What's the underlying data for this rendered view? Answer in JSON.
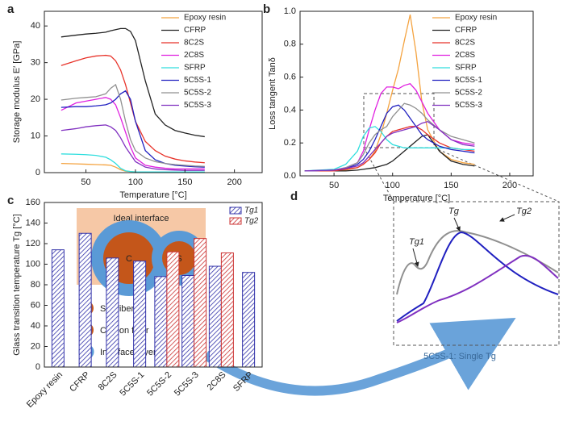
{
  "chart_data": [
    {
      "type": "line",
      "label": "a",
      "xlabel": "Temperature [°C]",
      "ylabel": "Storage modulus E′ [GPa]",
      "xlim": [
        8,
        228
      ],
      "xticks": [
        50,
        100,
        150,
        200
      ],
      "ylim": [
        0,
        44
      ],
      "yticks": [
        0,
        10,
        20,
        30,
        40
      ],
      "legend": "upper right",
      "x": [
        25,
        40,
        50,
        60,
        70,
        75,
        80,
        85,
        90,
        95,
        100,
        110,
        120,
        130,
        140,
        150,
        160,
        170
      ],
      "series": [
        {
          "name": "Epoxy resin",
          "color": "#f4a340",
          "values": [
            2.5,
            2.4,
            2.3,
            2.2,
            2.1,
            2,
            1.5,
            0.8,
            0.4,
            0.3,
            0.2,
            0.2,
            0.2,
            0.2,
            0.2,
            0.2,
            0.2,
            0.2
          ]
        },
        {
          "name": "CFRP",
          "color": "#222222",
          "values": [
            37,
            37.5,
            37.8,
            38,
            38.3,
            38.7,
            39,
            39.3,
            39.3,
            38.5,
            36,
            25,
            16,
            13,
            11.5,
            10.8,
            10.2,
            9.8
          ]
        },
        {
          "name": "8C2S",
          "color": "#e8332a",
          "values": [
            29.2,
            30.5,
            31.3,
            31.8,
            32,
            31.8,
            30.5,
            28,
            24,
            19,
            14,
            8.5,
            6,
            4.5,
            3.7,
            3.2,
            2.9,
            2.7
          ]
        },
        {
          "name": "2C8S",
          "color": "#e020e0",
          "values": [
            17,
            19,
            19.5,
            20,
            20.5,
            20,
            18.5,
            15,
            11,
            7,
            4,
            2,
            1.5,
            1.2,
            1,
            1,
            1,
            1
          ]
        },
        {
          "name": "SFRP",
          "color": "#30dede",
          "values": [
            5.1,
            5,
            4.9,
            4.7,
            4.2,
            3.5,
            2.5,
            1.2,
            0.5,
            0.3,
            0.2,
            0.2,
            0.2,
            0.2,
            0.2,
            0.2,
            0.2,
            0.2
          ]
        },
        {
          "name": "5C5S-1",
          "color": "#2020c0",
          "values": [
            17.8,
            18,
            18,
            18.2,
            18.5,
            19,
            20,
            21.5,
            22.3,
            20,
            14,
            6,
            3.5,
            2.5,
            2,
            1.8,
            1.6,
            1.5
          ]
        },
        {
          "name": "5C5S-2",
          "color": "#909090",
          "values": [
            19.8,
            20.3,
            20.5,
            20.7,
            21.5,
            23,
            24,
            20,
            14,
            9,
            6,
            4,
            3,
            2.5,
            2.2,
            2,
            1.8,
            1.7
          ]
        },
        {
          "name": "5C5S-3",
          "color": "#8030c0",
          "values": [
            11.5,
            12,
            12.5,
            12.8,
            13,
            12.5,
            11.5,
            9.5,
            7,
            5,
            3,
            1.5,
            1,
            0.8,
            0.7,
            0.6,
            0.6,
            0.6
          ]
        }
      ]
    },
    {
      "type": "line",
      "label": "b",
      "xlabel": "Temperature [°C]",
      "ylabel": "Loss tangent Tanδ",
      "xlim": [
        21,
        220
      ],
      "xticks": [
        50,
        100,
        150,
        200
      ],
      "ylim": [
        0,
        1
      ],
      "yticks": [
        {
          "value": 0,
          "label": "0.0"
        },
        0.2,
        0.4,
        0.6,
        0.8,
        {
          "value": 1,
          "label": "1.0"
        }
      ],
      "legend": "upper right",
      "x": [
        25,
        50,
        60,
        70,
        75,
        80,
        85,
        90,
        95,
        100,
        105,
        110,
        115,
        120,
        125,
        130,
        140,
        150,
        160,
        170
      ],
      "series": [
        {
          "name": "Epoxy resin",
          "color": "#f4a340",
          "values": [
            0.03,
            0.03,
            0.035,
            0.05,
            0.07,
            0.1,
            0.15,
            0.25,
            0.38,
            0.52,
            0.65,
            0.82,
            0.98,
            0.75,
            0.45,
            0.28,
            0.15,
            0.1,
            0.08,
            0.07
          ]
        },
        {
          "name": "CFRP",
          "color": "#222222",
          "values": [
            0.03,
            0.03,
            0.03,
            0.035,
            0.04,
            0.045,
            0.05,
            0.06,
            0.07,
            0.09,
            0.12,
            0.15,
            0.18,
            0.21,
            0.24,
            0.25,
            0.15,
            0.09,
            0.07,
            0.06
          ]
        },
        {
          "name": "8C2S",
          "color": "#e8332a",
          "values": [
            0.03,
            0.03,
            0.04,
            0.05,
            0.07,
            0.1,
            0.14,
            0.2,
            0.24,
            0.27,
            0.28,
            0.29,
            0.3,
            0.3,
            0.28,
            0.25,
            0.2,
            0.17,
            0.16,
            0.15
          ]
        },
        {
          "name": "2C8S",
          "color": "#e020e0",
          "values": [
            0.03,
            0.035,
            0.05,
            0.08,
            0.15,
            0.28,
            0.4,
            0.5,
            0.54,
            0.54,
            0.53,
            0.55,
            0.56,
            0.52,
            0.45,
            0.38,
            0.28,
            0.22,
            0.2,
            0.19
          ]
        },
        {
          "name": "SFRP",
          "color": "#30dede",
          "values": [
            0.03,
            0.04,
            0.07,
            0.15,
            0.24,
            0.29,
            0.3,
            0.27,
            0.22,
            0.19,
            0.18,
            0.17,
            0.17,
            0.17,
            0.17,
            0.17,
            0.17,
            0.17,
            0.16,
            0.16
          ]
        },
        {
          "name": "5C5S-1",
          "color": "#2020c0",
          "values": [
            0.03,
            0.035,
            0.045,
            0.07,
            0.1,
            0.15,
            0.22,
            0.3,
            0.38,
            0.42,
            0.43,
            0.4,
            0.35,
            0.3,
            0.25,
            0.22,
            0.18,
            0.16,
            0.15,
            0.14
          ]
        },
        {
          "name": "5C5S-2",
          "color": "#909090",
          "values": [
            0.03,
            0.035,
            0.05,
            0.08,
            0.13,
            0.2,
            0.25,
            0.28,
            0.3,
            0.36,
            0.4,
            0.44,
            0.43,
            0.41,
            0.38,
            0.34,
            0.28,
            0.24,
            0.22,
            0.2
          ]
        },
        {
          "name": "5C5S-3",
          "color": "#8030c0",
          "values": [
            0.03,
            0.035,
            0.045,
            0.06,
            0.08,
            0.12,
            0.16,
            0.2,
            0.24,
            0.26,
            0.27,
            0.28,
            0.29,
            0.3,
            0.32,
            0.33,
            0.28,
            0.22,
            0.19,
            0.18
          ]
        }
      ]
    },
    {
      "type": "bar",
      "label": "c",
      "ylabel": "Glass transition temperature Tg [°C]",
      "ylim": [
        0,
        160
      ],
      "yticks": [
        0,
        20,
        40,
        60,
        80,
        100,
        120,
        140,
        160
      ],
      "legend": "upper right",
      "categories": [
        "Epoxy resin",
        "CFRP",
        "8C2S",
        "5C5S-1",
        "5C5S-2",
        "5C5S-3",
        "2C8S",
        "SFRP"
      ],
      "series": [
        {
          "name": "Tg1",
          "color": "#3333aa",
          "values": [
            114,
            130,
            106,
            103,
            88,
            89,
            98,
            92
          ]
        },
        {
          "name": "Tg2",
          "color": "#cc3333",
          "values": [
            null,
            null,
            null,
            null,
            112,
            125,
            111,
            null
          ]
        }
      ]
    }
  ],
  "diagram": {
    "label": "d",
    "interface": "Ideal interface",
    "carbon": "C",
    "silk": "S",
    "legend": [
      "Silk fiber",
      "Carbon fiber",
      "Interface layer"
    ],
    "caption": "5C5S-1: Single Tg",
    "inset": [
      "Tg1",
      "Tg",
      "Tg2"
    ]
  }
}
